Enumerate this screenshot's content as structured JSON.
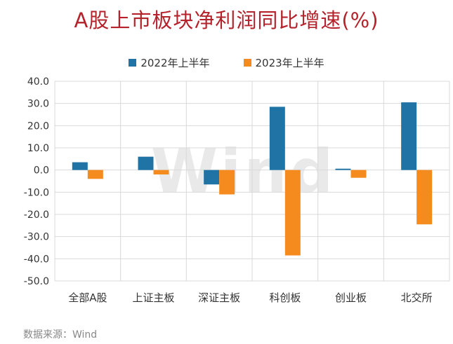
{
  "title": "A股上市板块净利润同比增速(%)",
  "source": "数据来源：Wind",
  "watermark": "Wind",
  "colors": {
    "series1": "#1f73a5",
    "series2": "#f58b1f",
    "grid": "#d9d9d9"
  },
  "chart_data": {
    "type": "bar",
    "categories": [
      "全部A股",
      "上证主板",
      "深证主板",
      "科创板",
      "创业板",
      "北交所"
    ],
    "series": [
      {
        "name": "2022年上半年",
        "values": [
          3.5,
          6.0,
          -6.5,
          28.5,
          0.6,
          30.5
        ]
      },
      {
        "name": "2023年上半年",
        "values": [
          -4.0,
          -2.0,
          -11.0,
          -38.5,
          -3.5,
          -24.5
        ]
      }
    ],
    "ylim": [
      -50,
      40
    ],
    "yticks": [
      "40.0",
      "30.0",
      "20.0",
      "10.0",
      "0.0",
      "-10.0",
      "-20.0",
      "-30.0",
      "-40.0",
      "-50.0"
    ],
    "legend": "top-center",
    "grid": true
  }
}
